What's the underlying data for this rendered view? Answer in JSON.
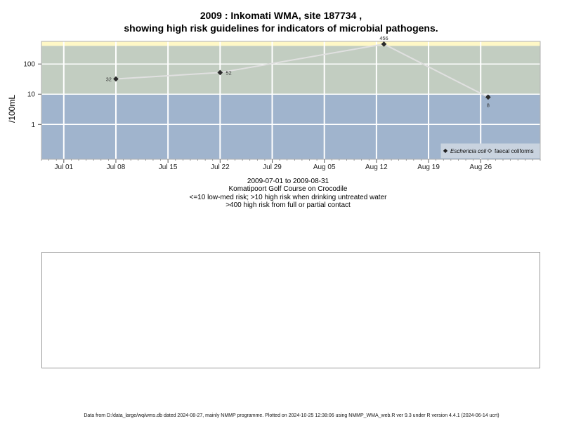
{
  "title_line1": "2009 : Inkomati WMA, site 187734 ,",
  "title_line2": "showing high risk guidelines for indicators of microbial pathogens.",
  "caption": {
    "line1": "2009-07-01 to 2009-08-31",
    "line2": "Komatipoort Golf Course on Crocodile",
    "line3": "<=10 low-med risk; >10 high risk when drinking untreated water",
    "line4": ">400 high risk from full or partial contact"
  },
  "footer": "Data from D:/data_large/wq/wms.db dated 2024-08-27, mainly NMMP programme. Plotted on 2024-10-25 12:38:06 using NMMP_WMA_web.R ver 9.3 under R version 4.4.1 (2024-06-14 ucrt)",
  "colors": {
    "band_low": "#a0b4cd",
    "band_mid": "#c2cdc1",
    "band_high": "#fff8c6",
    "line": "#e0e0e0",
    "grid": "#ffffff"
  },
  "chart_data": {
    "type": "line",
    "title": "2009 : Inkomati WMA, site 187734 , showing high risk guidelines for indicators of microbial pathogens.",
    "xlabel": "",
    "ylabel": "/100mL",
    "y_scale": "log10",
    "x_ticks": [
      "Jul 01",
      "Jul 08",
      "Jul 15",
      "Jul 22",
      "Jul 29",
      "Aug 05",
      "Aug 12",
      "Aug 19",
      "Aug 26"
    ],
    "x_tick_dates": [
      "2009-07-01",
      "2009-07-08",
      "2009-07-15",
      "2009-07-22",
      "2009-07-29",
      "2009-08-05",
      "2009-08-12",
      "2009-08-19",
      "2009-08-26"
    ],
    "xlim": [
      "2009-06-28",
      "2009-09-03"
    ],
    "y_ticks": [
      1,
      10,
      100
    ],
    "y_tick_labels": [
      "1",
      "10",
      "100"
    ],
    "ylim": [
      0.07,
      560
    ],
    "bands": [
      {
        "from": 0.07,
        "to": 10,
        "color": "#a0b4cd"
      },
      {
        "from": 10,
        "to": 400,
        "color": "#c2cdc1"
      },
      {
        "from": 400,
        "to": 560,
        "color": "#fff8c6"
      }
    ],
    "series": [
      {
        "name": "Eschericia coli",
        "marker": "filled-diamond",
        "color": "#e0e0e0",
        "x": [
          "2009-07-08",
          "2009-07-22",
          "2009-08-13",
          "2009-08-27"
        ],
        "y": [
          32,
          52,
          456,
          8
        ],
        "labels": [
          "32",
          "52",
          "456",
          "8"
        ]
      }
    ],
    "legend": {
      "placement": "bottom-right",
      "entries": [
        {
          "label": "Eschericia coli",
          "marker": "filled-diamond",
          "italic": true
        },
        {
          "label": "faecal coliforms",
          "marker": "open-diamond",
          "italic": false
        }
      ]
    },
    "grid": true
  }
}
